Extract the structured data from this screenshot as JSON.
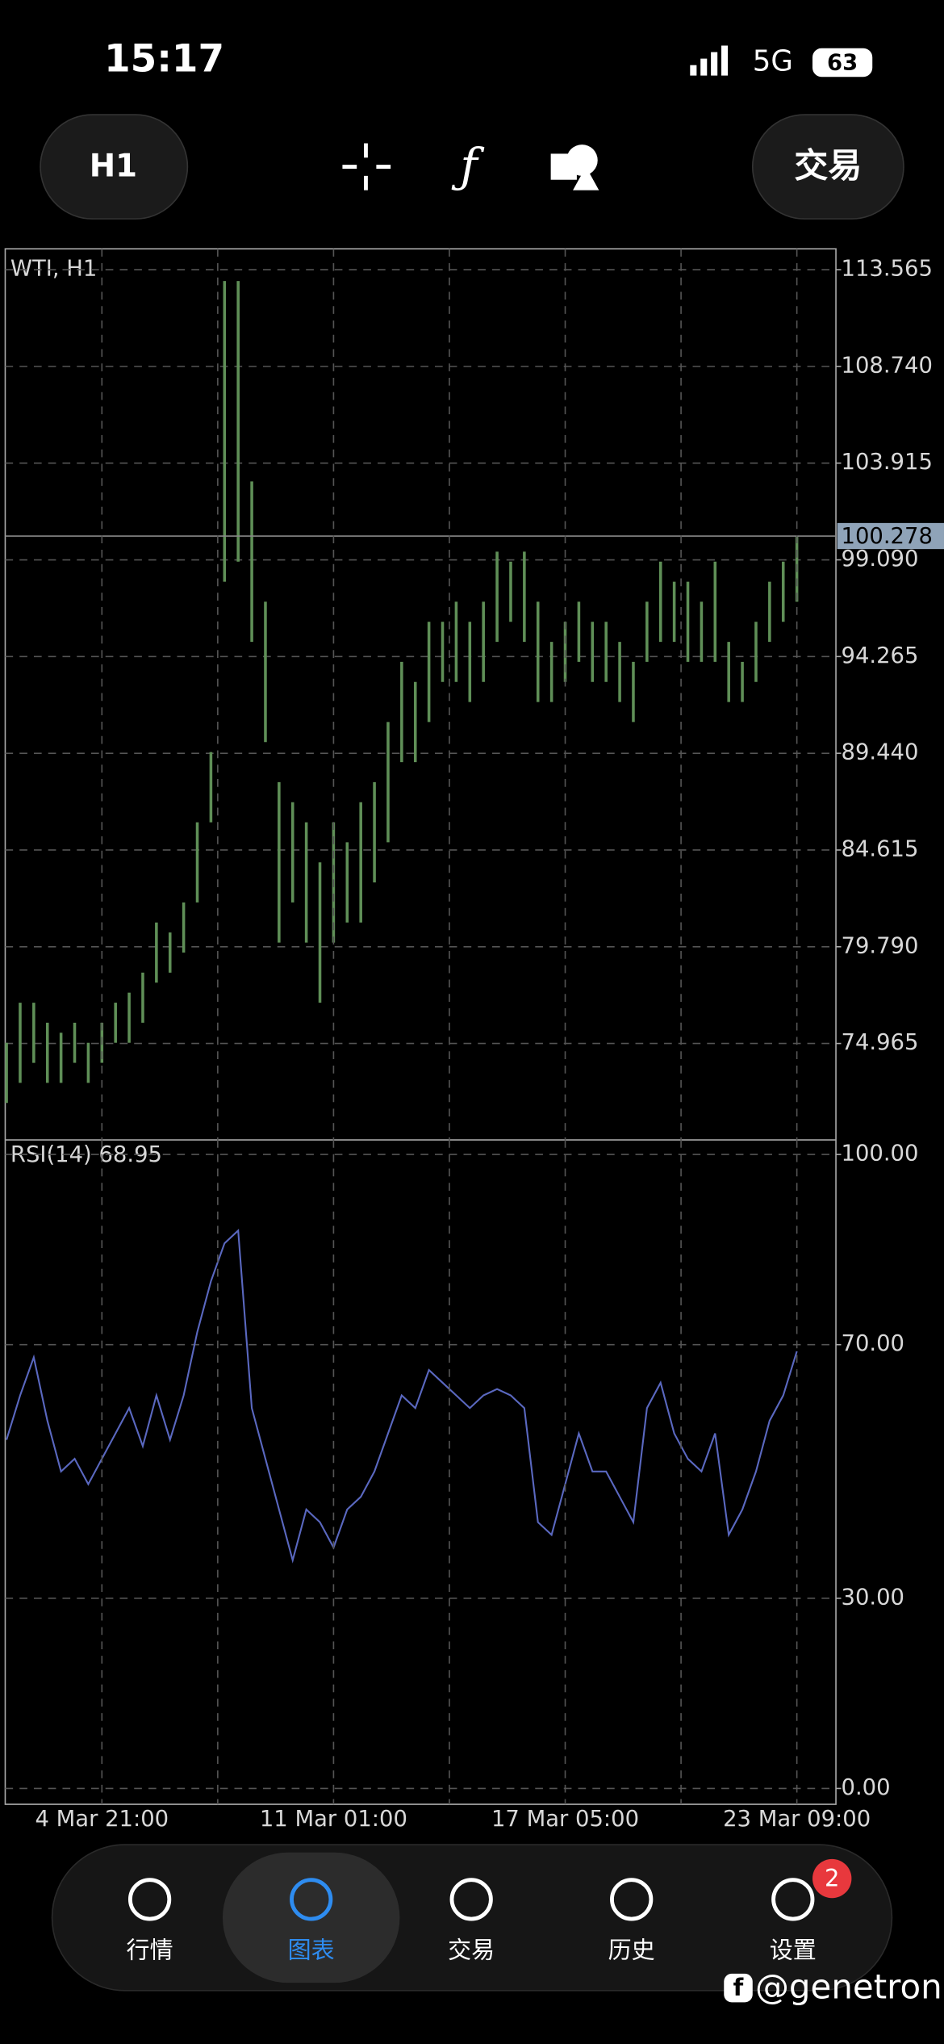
{
  "status_bar": {
    "time": "15:17",
    "network": "5G",
    "battery": "63"
  },
  "toolbar": {
    "timeframe": "H1",
    "trade_button": "交易"
  },
  "chart_data": [
    {
      "type": "ohlc",
      "title": "WTI, H1",
      "color": "#5f8f57",
      "high": [
        75,
        77,
        77,
        76,
        75.5,
        76,
        75,
        76,
        77,
        77.5,
        78.5,
        81,
        80.5,
        82,
        86,
        89.5,
        113,
        113,
        103,
        97,
        88,
        87,
        86,
        84,
        86,
        85,
        87,
        88,
        91,
        94,
        93,
        96,
        96,
        97,
        96,
        97,
        99.5,
        99,
        99.5,
        97,
        95,
        96,
        97,
        96,
        96,
        95,
        94,
        97,
        99,
        98,
        98,
        97,
        99,
        95,
        94,
        96,
        98,
        99,
        100.3
      ],
      "low": [
        72,
        73,
        74,
        73,
        73,
        74,
        73,
        74,
        75,
        75,
        76,
        78,
        78.5,
        79.5,
        82,
        86,
        98,
        99,
        95,
        90,
        80,
        82,
        80,
        77,
        80,
        81,
        81,
        83,
        85,
        89,
        89,
        91,
        93,
        93,
        92,
        93,
        95,
        96,
        95,
        92,
        92,
        93,
        94,
        93,
        93,
        92,
        91,
        94,
        95,
        95,
        94,
        94,
        94,
        92,
        92,
        93,
        95,
        96,
        97
      ],
      "current_price": 100.278,
      "ylim": [
        70.155,
        114.605
      ],
      "yticks": [
        113.565,
        {
          "value": 108.74,
          "label": "108.740"
        },
        103.915,
        {
          "value": 99.09,
          "label": "99.090"
        },
        94.265,
        {
          "value": 89.44,
          "label": "89.440"
        },
        84.615,
        {
          "value": 79.79,
          "label": "79.790"
        },
        74.965
      ],
      "grid": true
    },
    {
      "type": "line",
      "title": "RSI(14) 68.95",
      "color": "#5a68c0",
      "categories": [
        null,
        null,
        null,
        null,
        null,
        null,
        null,
        "4 Mar 21:00",
        null,
        null,
        null,
        null,
        null,
        null,
        null,
        null,
        null,
        null,
        null,
        null,
        null,
        null,
        null,
        null,
        "11 Mar 01:00",
        null,
        null,
        null,
        null,
        null,
        null,
        null,
        null,
        null,
        null,
        null,
        null,
        null,
        null,
        null,
        null,
        "17 Mar 05:00",
        null,
        null,
        null,
        null,
        null,
        null,
        null,
        null,
        null,
        null,
        null,
        null,
        null,
        null,
        null,
        null,
        "23 Mar 09:00"
      ],
      "values": [
        55,
        62,
        68,
        58,
        50,
        52,
        48,
        52,
        56,
        60,
        54,
        62,
        55,
        62,
        72,
        80,
        86,
        88,
        60,
        52,
        44,
        36,
        44,
        42,
        38,
        44,
        46,
        50,
        56,
        62,
        60,
        66,
        64,
        62,
        60,
        62,
        63,
        62,
        60,
        42,
        40,
        48,
        56,
        50,
        50,
        46,
        42,
        60,
        64,
        56,
        52,
        50,
        56,
        40,
        44,
        50,
        58,
        62,
        68.95
      ],
      "ylim": [
        -2.5,
        102.3
      ],
      "yticks": [
        {
          "value": 100,
          "label": "100.00"
        },
        {
          "value": 70,
          "label": "70.00"
        },
        {
          "value": 30,
          "label": "30.00"
        },
        {
          "value": 0,
          "label": "0.00"
        }
      ],
      "grid": true
    }
  ],
  "tab_bar": {
    "tabs": [
      {
        "label": "行情"
      },
      {
        "label": "图表"
      },
      {
        "label": "交易"
      },
      {
        "label": "历史"
      },
      {
        "label": "设置"
      }
    ],
    "active": 1,
    "badge": 2
  },
  "watermark": "@genetron"
}
